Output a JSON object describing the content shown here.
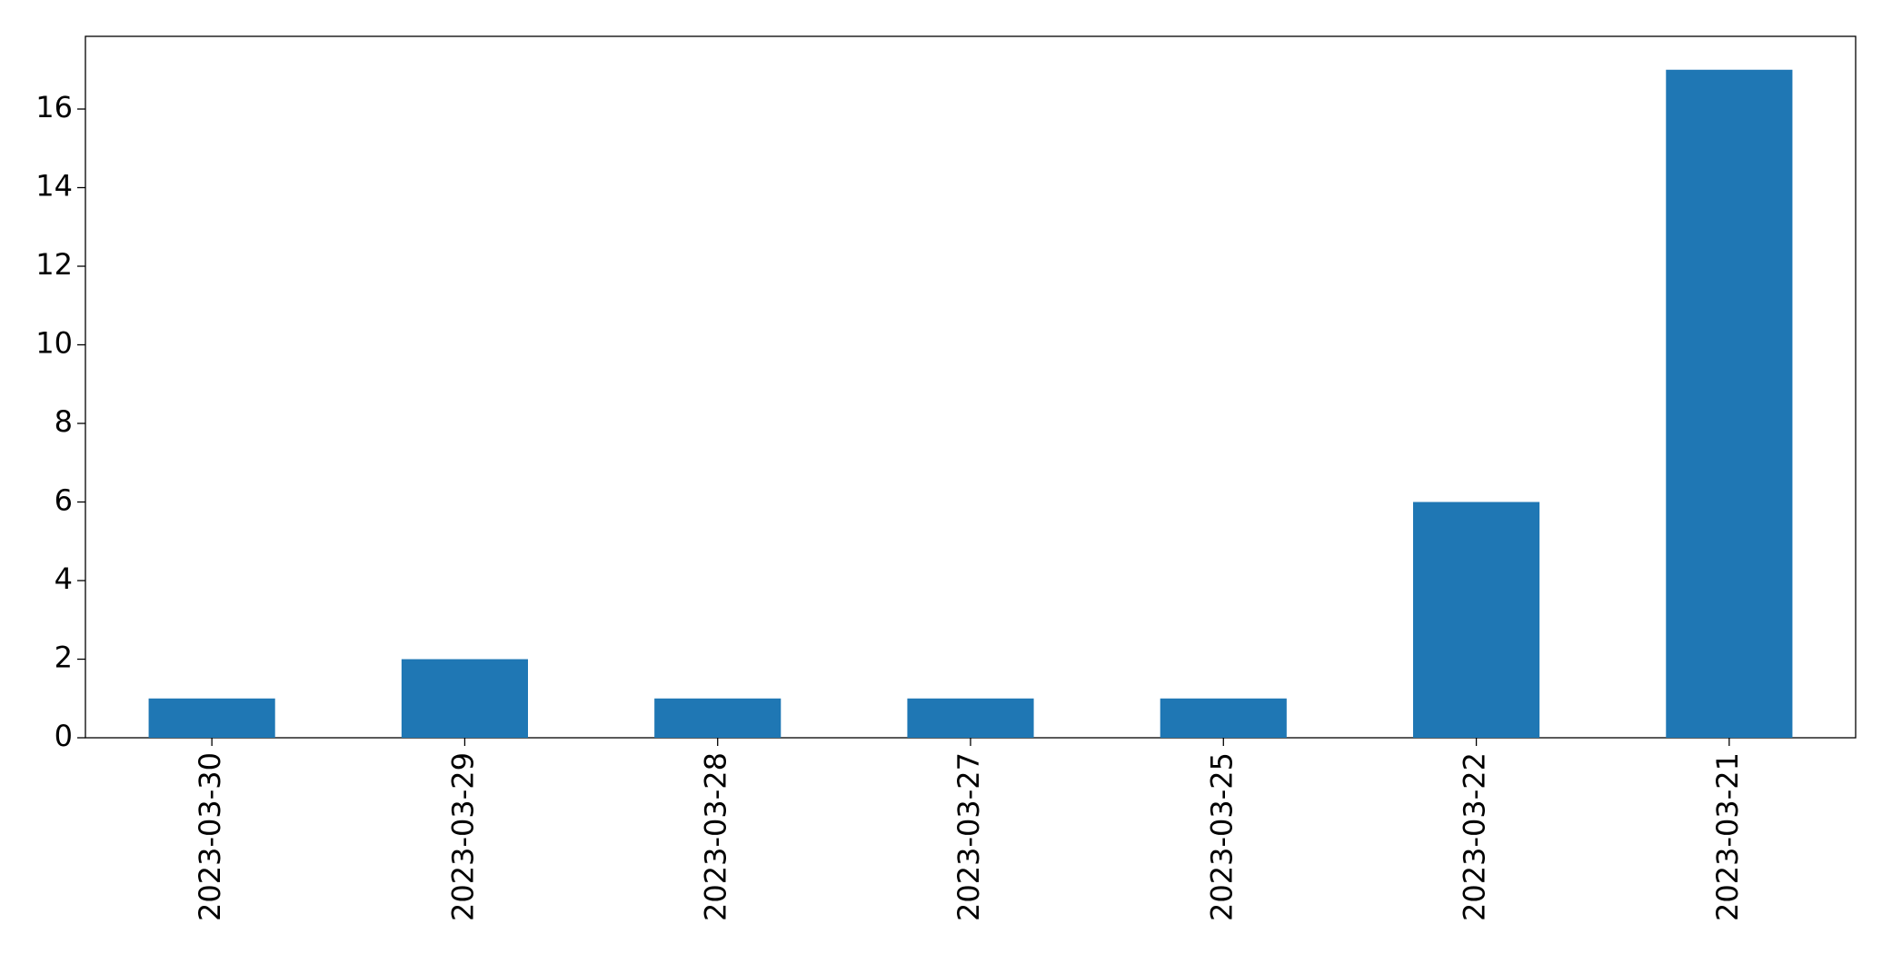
{
  "chart_data": {
    "type": "bar",
    "categories": [
      "2023-03-30",
      "2023-03-29",
      "2023-03-28",
      "2023-03-27",
      "2023-03-25",
      "2023-03-22",
      "2023-03-21"
    ],
    "values": [
      1,
      2,
      1,
      1,
      1,
      6,
      17
    ],
    "color": "#1f77b4",
    "ylim": [
      0,
      17.85
    ],
    "yticks": [
      0,
      2,
      4,
      6,
      8,
      10,
      12,
      14,
      16
    ],
    "grid": false
  }
}
